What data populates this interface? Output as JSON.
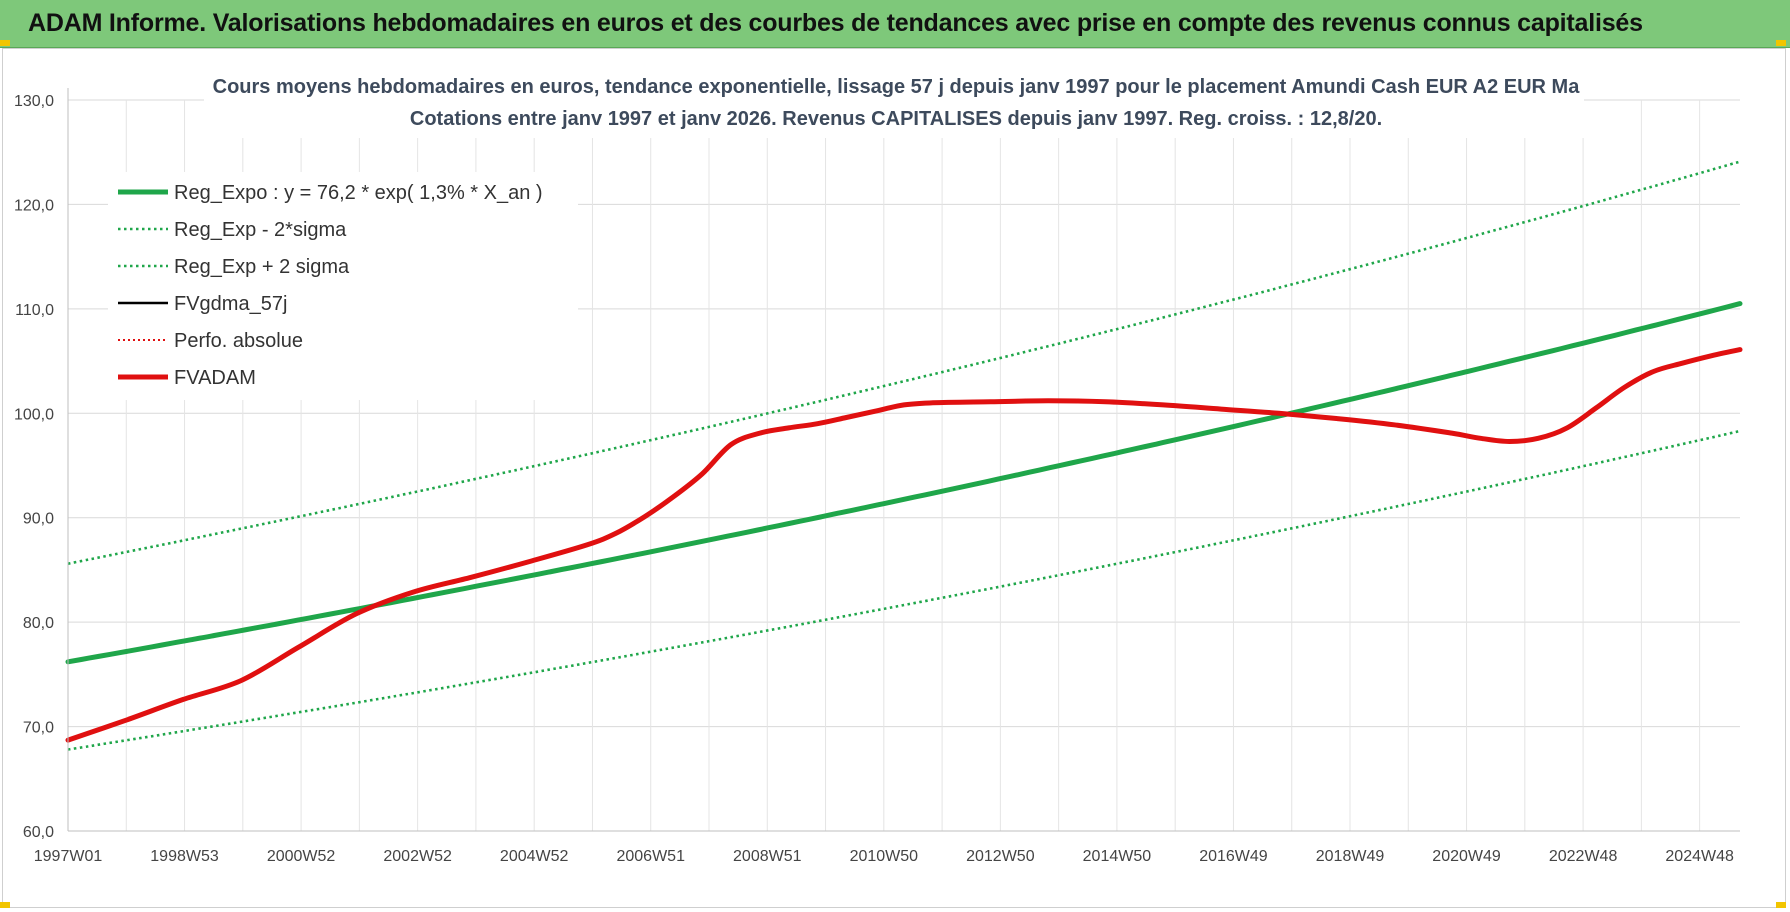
{
  "banner": {
    "title": "ADAM Informe. Valorisations hebdomadaires en euros et des courbes de tendances avec prise en compte des revenus connus capitalisés"
  },
  "chart_data": {
    "type": "line",
    "title": "Cours moyens hebdomadaires en euros, tendance exponentielle, lissage 57 j depuis janv 1997  pour le placement Amundi Cash EUR A2 EUR Ma",
    "subtitle": "Cotations entre janv 1997 et janv 2026. Revenus CAPITALISES depuis janv 1997. Reg. croiss. : 12,8/20.",
    "xlabel": "",
    "ylabel": "",
    "x_ticks": [
      "1997W01",
      "1998W53",
      "2000W52",
      "2002W52",
      "2004W52",
      "2006W51",
      "2008W51",
      "2010W50",
      "2012W50",
      "2014W50",
      "2016W49",
      "2018W49",
      "2020W49",
      "2022W48",
      "2024W48"
    ],
    "xlim": [
      1997.0,
      2026.0
    ],
    "ylim": [
      60,
      130
    ],
    "y_ticks": [
      "60,0",
      "70,0",
      "80,0",
      "90,0",
      "100,0",
      "110,0",
      "120,0",
      "130,0"
    ],
    "grid": true,
    "legend_position": "top-left",
    "series": [
      {
        "name": "Reg_Expo : y = 76,2 * exp( 1,3% *  X_an )",
        "color": "#1fa64a",
        "style": "solid-thick",
        "x": [
          1997.0,
          2026.0
        ],
        "y": [
          76.2,
          110.5
        ]
      },
      {
        "name": "Reg_Exp - 2*sigma",
        "color": "#1fa64a",
        "style": "dotted",
        "x": [
          1997.0,
          2026.0
        ],
        "y": [
          67.8,
          98.3
        ]
      },
      {
        "name": "Reg_Exp + 2 sigma",
        "color": "#1fa64a",
        "style": "dotted",
        "x": [
          1997.0,
          2026.0
        ],
        "y": [
          85.6,
          124.1
        ]
      },
      {
        "name": "FVgdma_57j",
        "color": "#000000",
        "style": "solid",
        "x": [],
        "y": []
      },
      {
        "name": "Perfo. absolue",
        "color": "#e01010",
        "style": "dotted",
        "x": [],
        "y": []
      },
      {
        "name": "FVADAM",
        "color": "#e01010",
        "style": "solid-thick",
        "x": [
          1997.0,
          1998.0,
          1999.0,
          2000.0,
          2001.0,
          2002.0,
          2003.0,
          2004.0,
          2005.0,
          2006.0,
          2006.5,
          2007.0,
          2007.5,
          2008.0,
          2008.5,
          2009.0,
          2009.5,
          2010.0,
          2010.5,
          2011.0,
          2011.5,
          2012.0,
          2013.0,
          2014.0,
          2015.0,
          2016.0,
          2017.0,
          2018.0,
          2019.0,
          2020.0,
          2021.0,
          2021.5,
          2022.0,
          2022.5,
          2023.0,
          2023.5,
          2024.0,
          2024.5,
          2025.0,
          2025.5,
          2026.0
        ],
        "y": [
          68.7,
          70.6,
          72.6,
          74.4,
          77.6,
          80.8,
          82.9,
          84.3,
          85.8,
          87.4,
          88.5,
          90.1,
          92.0,
          94.2,
          97.0,
          98.1,
          98.6,
          99.0,
          99.6,
          100.2,
          100.8,
          101.0,
          101.1,
          101.2,
          101.1,
          100.8,
          100.4,
          100.0,
          99.5,
          98.9,
          98.1,
          97.6,
          97.3,
          97.6,
          98.6,
          100.5,
          102.5,
          104.0,
          104.8,
          105.5,
          106.1
        ]
      }
    ]
  }
}
